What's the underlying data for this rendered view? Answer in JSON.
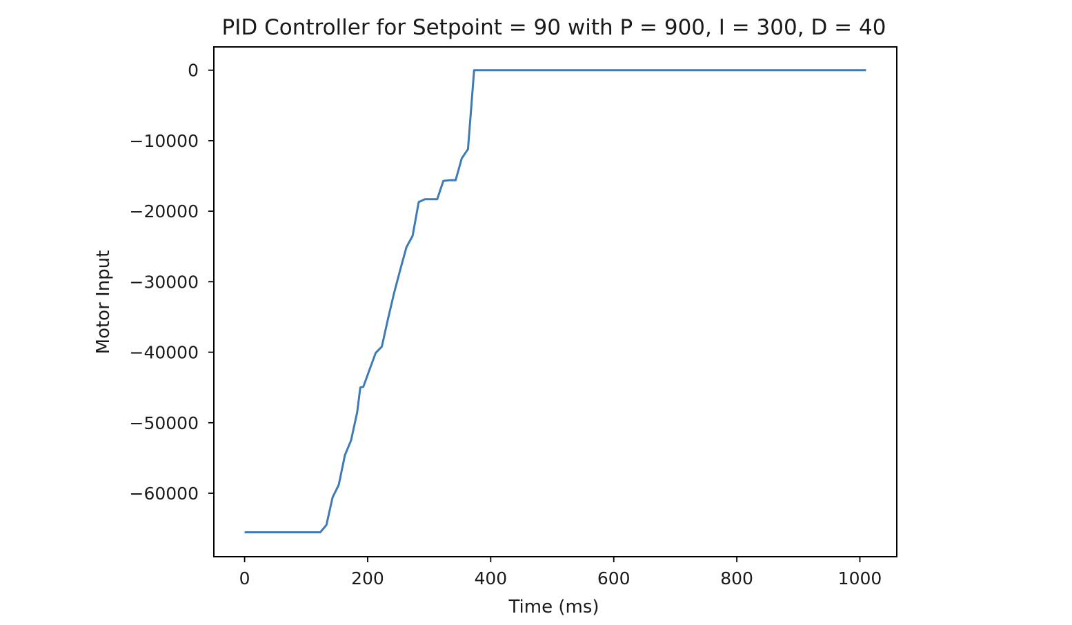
{
  "chart_data": {
    "type": "line",
    "title": "PID Controller for Setpoint = 90 with P = 900, I = 300, D = 40",
    "xlabel": "Time (ms)",
    "ylabel": "Motor Input",
    "xlim": [
      -50,
      1060
    ],
    "ylim": [
      -69000,
      3300
    ],
    "x_ticks": [
      0,
      200,
      400,
      600,
      800,
      1000
    ],
    "x_tick_labels": [
      "0",
      "200",
      "400",
      "600",
      "800",
      "1000"
    ],
    "y_ticks": [
      0,
      -10000,
      -20000,
      -30000,
      -40000,
      -50000,
      -60000
    ],
    "y_tick_labels": [
      "0",
      "−10000",
      "−20000",
      "−30000",
      "−40000",
      "−50000",
      "−60000"
    ],
    "grid": false,
    "series": [
      {
        "color": "#3d7ab8",
        "x": [
          0,
          123,
          133,
          143,
          153,
          163,
          173,
          183,
          188,
          193,
          203,
          213,
          223,
          233,
          243,
          253,
          263,
          273,
          283,
          293,
          303,
          313,
          323,
          333,
          343,
          353,
          363,
          373,
          383,
          400,
          600,
          800,
          1010
        ],
        "y": [
          -65535,
          -65535,
          -64500,
          -60600,
          -58800,
          -54600,
          -52500,
          -48500,
          -45000,
          -44900,
          -42500,
          -40100,
          -39200,
          -35300,
          -31600,
          -28300,
          -25100,
          -23500,
          -18700,
          -18300,
          -18300,
          -18300,
          -15700,
          -15600,
          -15600,
          -12500,
          -11200,
          0,
          0,
          0,
          0,
          0,
          0
        ]
      }
    ]
  }
}
